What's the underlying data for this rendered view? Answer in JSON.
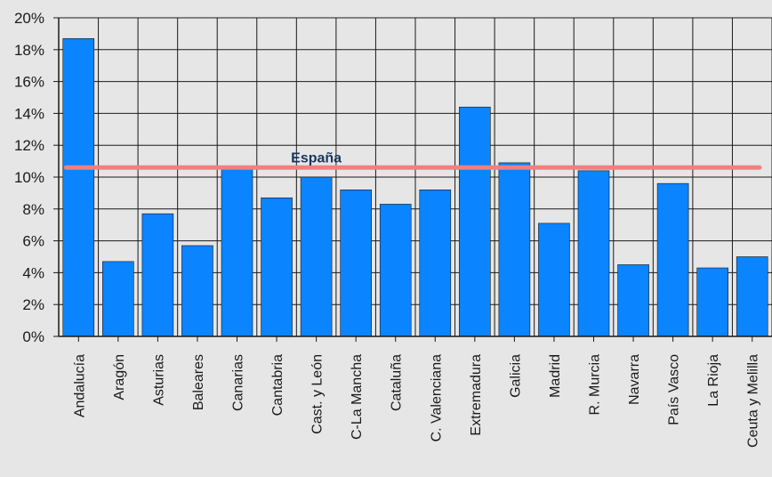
{
  "chart_data": {
    "type": "bar",
    "categories": [
      "Andalucía",
      "Aragón",
      "Asturias",
      "Baleares",
      "Canarias",
      "Cantabria",
      "Cast. y León",
      "C-La Mancha",
      "Cataluña",
      "C. Valenciana",
      "Extremadura",
      "Galicia",
      "Madrid",
      "R. Murcia",
      "Navarra",
      "País Vasco",
      "La Rioja",
      "Ceuta y Melilla"
    ],
    "values": [
      18.7,
      4.7,
      7.7,
      5.7,
      10.5,
      8.7,
      10.0,
      9.2,
      8.3,
      9.2,
      14.4,
      10.9,
      7.1,
      10.4,
      4.5,
      9.6,
      4.3,
      5.0
    ],
    "y_ticks": [
      "0%",
      "2%",
      "4%",
      "6%",
      "8%",
      "10%",
      "12%",
      "14%",
      "16%",
      "18%",
      "20%"
    ],
    "ylim": [
      0,
      20
    ],
    "grid": true,
    "reference_line": {
      "label": "España",
      "value": 10.6
    },
    "colors": {
      "bar": "#0a84ff",
      "bar_edge": "#1a1a1a",
      "reference_line": "#f08080",
      "reference_label": "#17375e",
      "plot_background": "#e6e6e6",
      "grid": "#1a1a1a"
    }
  }
}
